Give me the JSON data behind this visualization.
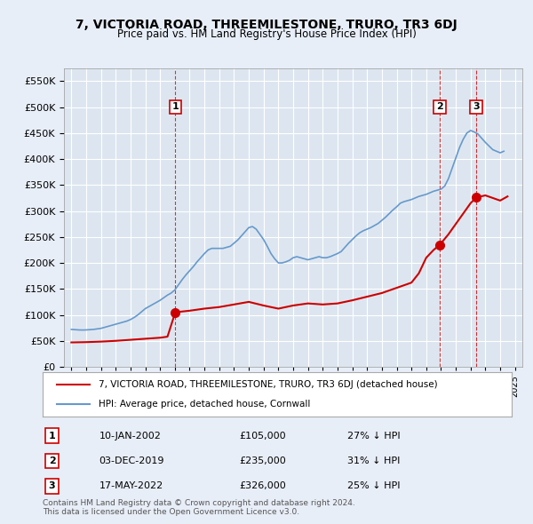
{
  "title": "7, VICTORIA ROAD, THREEMILESTONE, TRURO, TR3 6DJ",
  "subtitle": "Price paid vs. HM Land Registry's House Price Index (HPI)",
  "legend_line1": "7, VICTORIA ROAD, THREEMILESTONE, TRURO, TR3 6DJ (detached house)",
  "legend_line2": "HPI: Average price, detached house, Cornwall",
  "footnote1": "Contains HM Land Registry data © Crown copyright and database right 2024.",
  "footnote2": "This data is licensed under the Open Government Licence v3.0.",
  "transactions": [
    {
      "num": 1,
      "date": "10-JAN-2002",
      "price": 105000,
      "pct": "27% ↓ HPI",
      "x": 2002.03
    },
    {
      "num": 2,
      "date": "03-DEC-2019",
      "price": 235000,
      "pct": "31% ↓ HPI",
      "x": 2019.92
    },
    {
      "num": 3,
      "date": "17-MAY-2022",
      "price": 326000,
      "pct": "25% ↓ HPI",
      "x": 2022.38
    }
  ],
  "hpi_color": "#6699cc",
  "sale_color": "#cc0000",
  "vline_color": "#cc0000",
  "bg_color": "#e8eef8",
  "plot_bg": "#dde6f0",
  "grid_color": "#ffffff",
  "ylim": [
    0,
    575000
  ],
  "xlim": [
    1994.5,
    2025.5
  ],
  "yticks": [
    0,
    50000,
    100000,
    150000,
    200000,
    250000,
    300000,
    350000,
    400000,
    450000,
    500000,
    550000
  ],
  "xticks": [
    1995,
    1996,
    1997,
    1998,
    1999,
    2000,
    2001,
    2002,
    2003,
    2004,
    2005,
    2006,
    2007,
    2008,
    2009,
    2010,
    2011,
    2012,
    2013,
    2014,
    2015,
    2016,
    2017,
    2018,
    2019,
    2020,
    2021,
    2022,
    2023,
    2024,
    2025
  ],
  "hpi_data": {
    "x": [
      1995,
      1995.25,
      1995.5,
      1995.75,
      1996,
      1996.25,
      1996.5,
      1996.75,
      1997,
      1997.25,
      1997.5,
      1997.75,
      1998,
      1998.25,
      1998.5,
      1998.75,
      1999,
      1999.25,
      1999.5,
      1999.75,
      2000,
      2000.25,
      2000.5,
      2000.75,
      2001,
      2001.25,
      2001.5,
      2001.75,
      2002,
      2002.25,
      2002.5,
      2002.75,
      2003,
      2003.25,
      2003.5,
      2003.75,
      2004,
      2004.25,
      2004.5,
      2004.75,
      2005,
      2005.25,
      2005.5,
      2005.75,
      2006,
      2006.25,
      2006.5,
      2006.75,
      2007,
      2007.25,
      2007.5,
      2007.75,
      2008,
      2008.25,
      2008.5,
      2008.75,
      2009,
      2009.25,
      2009.5,
      2009.75,
      2010,
      2010.25,
      2010.5,
      2010.75,
      2011,
      2011.25,
      2011.5,
      2011.75,
      2012,
      2012.25,
      2012.5,
      2012.75,
      2013,
      2013.25,
      2013.5,
      2013.75,
      2014,
      2014.25,
      2014.5,
      2014.75,
      2015,
      2015.25,
      2015.5,
      2015.75,
      2016,
      2016.25,
      2016.5,
      2016.75,
      2017,
      2017.25,
      2017.5,
      2017.75,
      2018,
      2018.25,
      2018.5,
      2018.75,
      2019,
      2019.25,
      2019.5,
      2019.75,
      2020,
      2020.25,
      2020.5,
      2020.75,
      2021,
      2021.25,
      2021.5,
      2021.75,
      2022,
      2022.25,
      2022.5,
      2022.75,
      2023,
      2023.25,
      2023.5,
      2023.75,
      2024,
      2024.25
    ],
    "y": [
      72000,
      71500,
      71000,
      70800,
      71000,
      71500,
      72000,
      73000,
      74000,
      76000,
      78000,
      80000,
      82000,
      84000,
      86000,
      88000,
      91000,
      95000,
      100000,
      106000,
      112000,
      116000,
      120000,
      124000,
      128000,
      133000,
      138000,
      142000,
      148000,
      158000,
      168000,
      177000,
      185000,
      193000,
      202000,
      210000,
      218000,
      225000,
      228000,
      228000,
      228000,
      228000,
      230000,
      232000,
      238000,
      244000,
      252000,
      260000,
      268000,
      270000,
      265000,
      255000,
      245000,
      232000,
      218000,
      208000,
      200000,
      200000,
      202000,
      205000,
      210000,
      212000,
      210000,
      208000,
      206000,
      208000,
      210000,
      212000,
      210000,
      210000,
      212000,
      215000,
      218000,
      222000,
      230000,
      238000,
      245000,
      252000,
      258000,
      262000,
      265000,
      268000,
      272000,
      276000,
      282000,
      288000,
      295000,
      302000,
      308000,
      315000,
      318000,
      320000,
      322000,
      325000,
      328000,
      330000,
      332000,
      335000,
      338000,
      340000,
      342000,
      348000,
      362000,
      382000,
      402000,
      422000,
      438000,
      450000,
      455000,
      452000,
      448000,
      440000,
      432000,
      425000,
      418000,
      415000,
      412000,
      415000
    ]
  },
  "sale_data": {
    "x": [
      1995,
      1996,
      1997,
      1998,
      1999,
      2000,
      2001,
      2001.5,
      2002.03,
      2003,
      2004,
      2005,
      2006,
      2007,
      2008,
      2009,
      2010,
      2011,
      2012,
      2013,
      2014,
      2015,
      2016,
      2017,
      2018,
      2018.5,
      2019,
      2019.5,
      2019.92,
      2020.5,
      2021,
      2021.5,
      2022,
      2022.38,
      2023,
      2023.5,
      2024,
      2024.5
    ],
    "y": [
      47000,
      47500,
      48500,
      50000,
      52000,
      54000,
      56000,
      58000,
      105000,
      108000,
      112000,
      115000,
      120000,
      125000,
      118000,
      112000,
      118000,
      122000,
      120000,
      122000,
      128000,
      135000,
      142000,
      152000,
      162000,
      180000,
      210000,
      225000,
      235000,
      255000,
      275000,
      295000,
      315000,
      326000,
      330000,
      325000,
      320000,
      328000
    ]
  }
}
